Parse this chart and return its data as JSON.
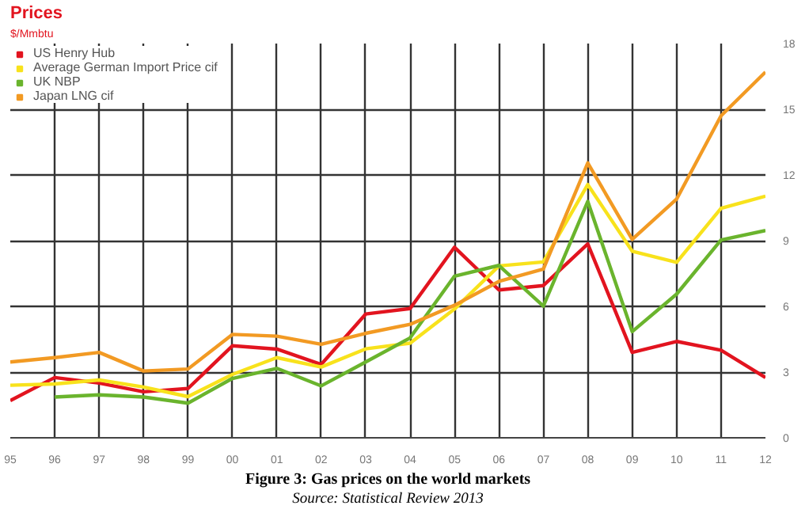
{
  "chart_data": {
    "type": "line",
    "title": "Prices",
    "subtitle": "$/Mmbtu",
    "annotations": [
      "Figure 3: Gas prices on the world markets",
      "Source: Statistical Review 2013"
    ],
    "x": [
      1995,
      1996,
      1997,
      1998,
      1999,
      2000,
      2001,
      2002,
      2003,
      2004,
      2005,
      2006,
      2007,
      2008,
      2009,
      2010,
      2011,
      2012
    ],
    "xlim": [
      1995,
      2012
    ],
    "xticks": [
      {
        "value": 1995,
        "label": "95"
      },
      {
        "value": 1996,
        "label": "96"
      },
      {
        "value": 1997,
        "label": "97"
      },
      {
        "value": 1998,
        "label": "98"
      },
      {
        "value": 1999,
        "label": "99"
      },
      {
        "value": 2000,
        "label": "00"
      },
      {
        "value": 2001,
        "label": "01"
      },
      {
        "value": 2002,
        "label": "02"
      },
      {
        "value": 2003,
        "label": "03"
      },
      {
        "value": 2004,
        "label": "04"
      },
      {
        "value": 2005,
        "label": "05"
      },
      {
        "value": 2006,
        "label": "06"
      },
      {
        "value": 2007,
        "label": "07"
      },
      {
        "value": 2008,
        "label": "08"
      },
      {
        "value": 2009,
        "label": "09"
      },
      {
        "value": 2010,
        "label": "10"
      },
      {
        "value": 2011,
        "label": "11"
      },
      {
        "value": 2012,
        "label": "12"
      }
    ],
    "ylim": [
      0,
      18
    ],
    "yticks": [
      0,
      3,
      6,
      9,
      12,
      15,
      18
    ],
    "grid": true,
    "legend": "top left",
    "marker": "none",
    "line_style": "solid",
    "series": [
      {
        "name": "US Henry Hub",
        "color": "#e2141f",
        "values": [
          1.7,
          2.75,
          2.5,
          2.1,
          2.25,
          4.2,
          4.05,
          3.35,
          5.65,
          5.9,
          8.7,
          6.75,
          6.95,
          8.85,
          3.9,
          4.4,
          4.0,
          2.75
        ]
      },
      {
        "name": "Average German Import Price cif",
        "color": "#f8e21c",
        "values": [
          2.4,
          2.46,
          2.64,
          2.32,
          1.88,
          2.89,
          3.66,
          3.23,
          4.06,
          4.32,
          5.88,
          7.85,
          8.03,
          11.56,
          8.52,
          8.01,
          10.48,
          11.03
        ]
      },
      {
        "name": "UK NBP",
        "color": "#6ab42d",
        "values": [
          null,
          1.86,
          1.96,
          1.86,
          1.58,
          2.71,
          3.17,
          2.37,
          3.46,
          4.56,
          7.38,
          7.87,
          6.01,
          10.79,
          4.85,
          6.56,
          9.03,
          9.46
        ]
      },
      {
        "name": "Japan LNG cif",
        "color": "#f29a23",
        "values": [
          3.46,
          3.66,
          3.9,
          3.05,
          3.14,
          4.72,
          4.64,
          4.27,
          4.77,
          5.18,
          6.05,
          7.14,
          7.7,
          12.55,
          9.06,
          10.9,
          14.7,
          16.7
        ]
      }
    ]
  }
}
